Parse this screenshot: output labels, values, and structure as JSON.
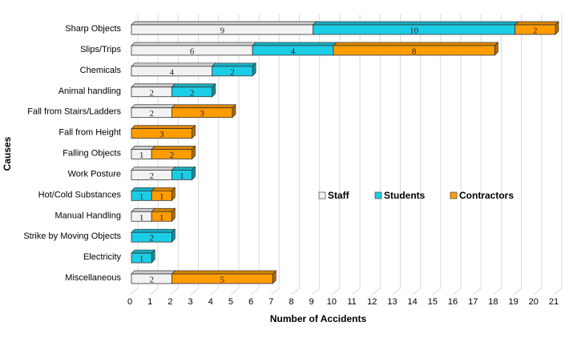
{
  "chart_data": {
    "type": "bar",
    "orientation": "horizontal",
    "stacked": true,
    "three_d": true,
    "xlabel": "Number of Accidents",
    "ylabel": "Causes",
    "xlim": [
      0,
      21
    ],
    "xticks": [
      0,
      1,
      2,
      3,
      4,
      5,
      6,
      7,
      8,
      9,
      10,
      11,
      12,
      13,
      14,
      15,
      16,
      17,
      18,
      19,
      20,
      21
    ],
    "grid": true,
    "legend_position": "center-right",
    "categories": [
      "Sharp Objects",
      "Slips/Trips",
      "Chemicals",
      "Animal handling",
      "Fall from Stairs/Ladders",
      "Fall from Height",
      "Falling Objects",
      "Work Posture",
      "Hot/Cold Substances",
      "Manual Handling",
      "Strike by Moving Objects",
      "Electricity",
      "Miscellaneous"
    ],
    "series": [
      {
        "name": "Staff",
        "color": "#f2f2f2",
        "values": [
          9,
          6,
          4,
          2,
          2,
          0,
          1,
          2,
          0,
          1,
          0,
          0,
          2
        ]
      },
      {
        "name": "Students",
        "color": "#1ccde6",
        "values": [
          10,
          4,
          2,
          2,
          0,
          0,
          0,
          1,
          1,
          0,
          2,
          1,
          0
        ]
      },
      {
        "name": "Contractors",
        "color": "#ff9c00",
        "values": [
          2,
          8,
          0,
          0,
          3,
          3,
          2,
          0,
          1,
          1,
          0,
          0,
          5
        ]
      }
    ]
  }
}
